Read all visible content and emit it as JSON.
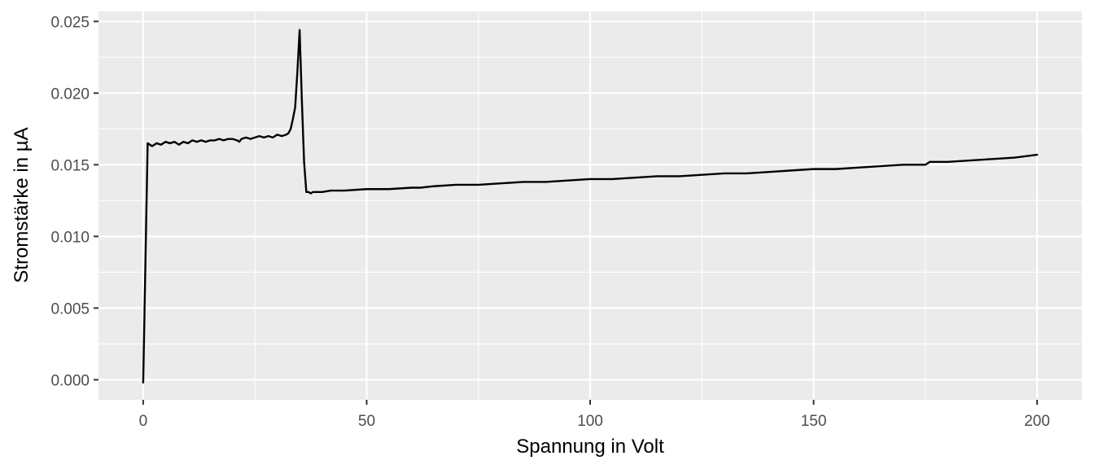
{
  "chart_data": {
    "type": "line",
    "title": "",
    "xlabel": "Spannung in Volt",
    "ylabel": "Stromstärke in µA",
    "xlim": [
      -10,
      210
    ],
    "ylim": [
      -0.0014,
      0.0257
    ],
    "x_ticks": [
      0,
      50,
      100,
      150,
      200
    ],
    "x_tick_labels": [
      "0",
      "50",
      "100",
      "150",
      "200"
    ],
    "y_ticks": [
      0,
      0.005,
      0.01,
      0.015,
      0.02,
      0.025
    ],
    "y_tick_labels": [
      "0.000",
      "0.005",
      "0.010",
      "0.015",
      "0.020",
      "0.025"
    ],
    "grid": true,
    "background_color": "#ebebeb",
    "grid_color": "#ffffff",
    "line_color": "#000000",
    "series": [
      {
        "x": [
          0,
          1,
          1.5,
          2,
          3,
          4,
          5,
          6,
          7,
          8,
          9,
          10,
          11,
          12,
          13,
          14,
          15,
          16,
          17,
          18,
          19,
          20,
          21,
          21.5,
          22,
          23,
          24,
          25,
          26,
          27,
          28,
          29,
          30,
          31,
          32,
          32.5,
          33,
          33.5,
          34,
          34.5,
          35,
          35.5,
          36,
          36.5,
          37,
          37.5,
          38,
          39,
          40,
          42,
          45,
          50,
          55,
          60,
          62,
          65,
          70,
          75,
          80,
          85,
          90,
          95,
          100,
          105,
          110,
          115,
          120,
          125,
          130,
          135,
          140,
          145,
          150,
          155,
          160,
          165,
          170,
          175,
          176,
          180,
          185,
          190,
          195,
          200
        ],
        "y": [
          -0.0002,
          0.0165,
          0.0164,
          0.0163,
          0.0165,
          0.0164,
          0.0166,
          0.0165,
          0.0166,
          0.0164,
          0.0166,
          0.0165,
          0.0167,
          0.0166,
          0.0167,
          0.0166,
          0.0167,
          0.0167,
          0.0168,
          0.0167,
          0.0168,
          0.0168,
          0.0167,
          0.0166,
          0.0168,
          0.0169,
          0.0168,
          0.0169,
          0.017,
          0.0169,
          0.017,
          0.0169,
          0.0171,
          0.017,
          0.0171,
          0.0172,
          0.0175,
          0.0182,
          0.019,
          0.0215,
          0.0244,
          0.0195,
          0.0152,
          0.0131,
          0.0131,
          0.013,
          0.0131,
          0.0131,
          0.0131,
          0.0132,
          0.0132,
          0.0133,
          0.0133,
          0.0134,
          0.0134,
          0.0135,
          0.0136,
          0.0136,
          0.0137,
          0.0138,
          0.0138,
          0.0139,
          0.014,
          0.014,
          0.0141,
          0.0142,
          0.0142,
          0.0143,
          0.0144,
          0.0144,
          0.0145,
          0.0146,
          0.0147,
          0.0147,
          0.0148,
          0.0149,
          0.015,
          0.015,
          0.0152,
          0.0152,
          0.0153,
          0.0154,
          0.0155,
          0.0157
        ]
      }
    ]
  }
}
